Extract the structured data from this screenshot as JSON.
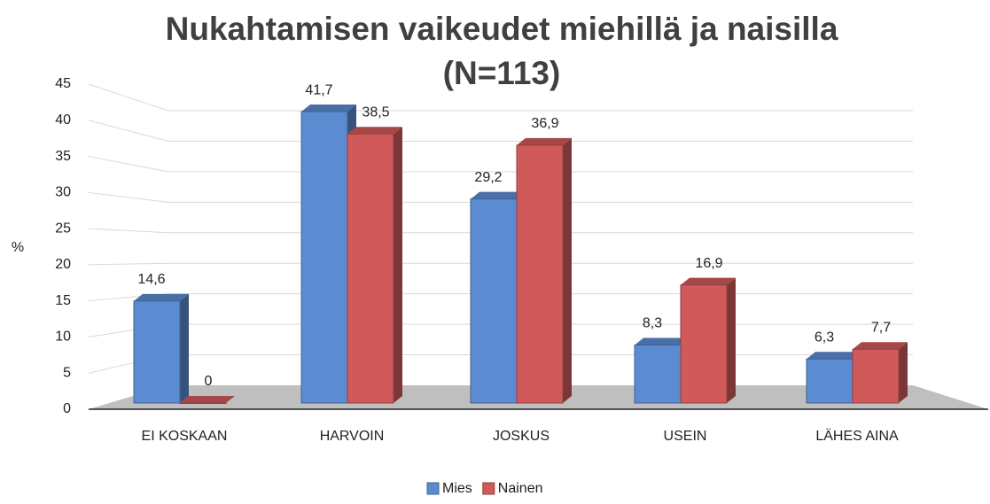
{
  "chart_data": {
    "type": "bar3d",
    "title": "Nukahtamisen vaikeudet miehillä ja naisilla (N=113)",
    "y_label": "%",
    "categories": [
      "EI KOSKAAN",
      "HARVOIN",
      "JOSKUS",
      "USEIN",
      "LÄHES AINA"
    ],
    "series": [
      {
        "name": "Mies",
        "color": "#5b8bd0",
        "values": [
          14.6,
          41.7,
          29.2,
          8.3,
          6.3
        ],
        "value_labels": [
          "14,6",
          "41,7",
          "29,2",
          "8,3",
          "6,3"
        ]
      },
      {
        "name": "Nainen",
        "color": "#d05a5a",
        "values": [
          0,
          38.5,
          36.9,
          16.9,
          7.7
        ],
        "value_labels": [
          "0",
          "38,5",
          "36,9",
          "16,9",
          "7,7"
        ]
      }
    ],
    "ylim": [
      0,
      45
    ],
    "yticks": [
      0,
      5,
      10,
      15,
      20,
      25,
      30,
      35,
      40,
      45
    ],
    "grid": true,
    "legend": "bottom"
  }
}
